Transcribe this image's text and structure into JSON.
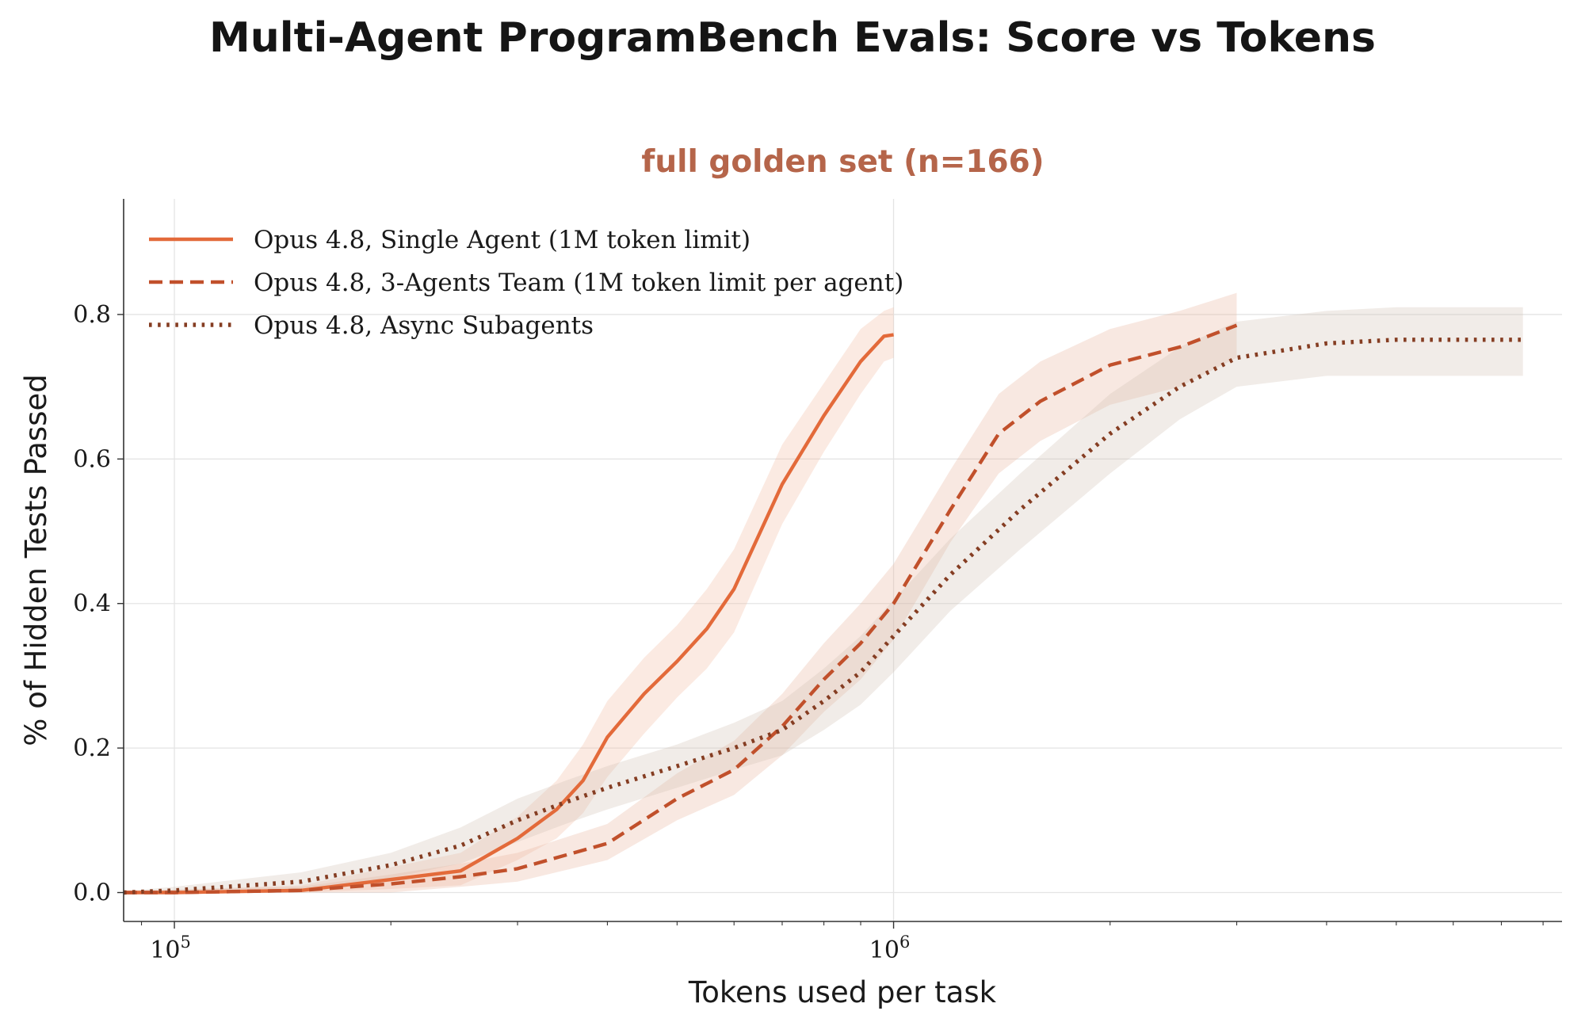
{
  "figure_title": "Multi-Agent ProgramBench Evals: Score vs Tokens",
  "chart_data": {
    "type": "line",
    "title": "full golden set (n=166)",
    "title_color": "#B5654A",
    "xlabel": "Tokens used per task",
    "ylabel": "% of Hidden Tests Passed",
    "xscale": "log",
    "xlim": [
      85000,
      8500000
    ],
    "ylim": [
      -0.04,
      0.96
    ],
    "grid": true,
    "legend_position": "upper-left",
    "yticks": [
      {
        "value": 0.0,
        "label": "0.0"
      },
      {
        "value": 0.2,
        "label": "0.2"
      },
      {
        "value": 0.4,
        "label": "0.4"
      },
      {
        "value": 0.6,
        "label": "0.6"
      },
      {
        "value": 0.8,
        "label": "0.8"
      }
    ],
    "xticks_major": [
      {
        "value": 100000,
        "base": "10",
        "exp": "5"
      },
      {
        "value": 1000000,
        "base": "10",
        "exp": "6"
      }
    ],
    "series": [
      {
        "name": "Opus 4.8, Single Agent (1M token limit)",
        "color": "#E36A3A",
        "band_color": "#F2B8A0",
        "style": "solid",
        "x": [
          85000,
          100000,
          150000,
          200000,
          250000,
          300000,
          340000,
          370000,
          400000,
          450000,
          500000,
          550000,
          600000,
          700000,
          800000,
          900000,
          970000,
          1000000
        ],
        "y": [
          0.0,
          0.0,
          0.003,
          0.018,
          0.03,
          0.075,
          0.115,
          0.155,
          0.215,
          0.275,
          0.32,
          0.365,
          0.42,
          0.565,
          0.66,
          0.735,
          0.77,
          0.772
        ],
        "lower": [
          0.0,
          0.0,
          0.0,
          0.005,
          0.01,
          0.045,
          0.075,
          0.11,
          0.16,
          0.22,
          0.27,
          0.31,
          0.36,
          0.51,
          0.61,
          0.69,
          0.735,
          0.74
        ],
        "upper": [
          0.002,
          0.004,
          0.01,
          0.035,
          0.055,
          0.105,
          0.155,
          0.205,
          0.265,
          0.325,
          0.37,
          0.42,
          0.475,
          0.62,
          0.705,
          0.78,
          0.805,
          0.81
        ]
      },
      {
        "name": "Opus 4.8, 3-Agents Team (1M token limit per agent)",
        "color": "#C1502B",
        "band_color": "#E8B39A",
        "style": "dashed",
        "x": [
          85000,
          100000,
          150000,
          200000,
          250000,
          300000,
          400000,
          500000,
          600000,
          700000,
          800000,
          900000,
          1000000,
          1200000,
          1400000,
          1600000,
          2000000,
          2500000,
          3000000
        ],
        "y": [
          0.0,
          0.0,
          0.003,
          0.012,
          0.022,
          0.033,
          0.068,
          0.13,
          0.17,
          0.23,
          0.295,
          0.345,
          0.4,
          0.53,
          0.635,
          0.68,
          0.73,
          0.755,
          0.785
        ],
        "lower": [
          0.0,
          0.0,
          0.0,
          0.0,
          0.008,
          0.015,
          0.045,
          0.1,
          0.135,
          0.19,
          0.25,
          0.295,
          0.35,
          0.485,
          0.58,
          0.625,
          0.675,
          0.7,
          0.74
        ],
        "upper": [
          0.002,
          0.004,
          0.008,
          0.025,
          0.04,
          0.055,
          0.095,
          0.165,
          0.21,
          0.275,
          0.345,
          0.4,
          0.455,
          0.585,
          0.69,
          0.735,
          0.78,
          0.805,
          0.83
        ]
      },
      {
        "name": "Opus 4.8, Async Subagents",
        "color": "#853D22",
        "band_color": "#D2BFB4",
        "style": "dotted",
        "x": [
          85000,
          100000,
          150000,
          200000,
          250000,
          300000,
          350000,
          400000,
          500000,
          600000,
          700000,
          800000,
          900000,
          1000000,
          1200000,
          1500000,
          2000000,
          2500000,
          3000000,
          4000000,
          5000000,
          7500000
        ],
        "y": [
          0.0,
          0.003,
          0.015,
          0.038,
          0.065,
          0.1,
          0.125,
          0.145,
          0.175,
          0.2,
          0.225,
          0.265,
          0.305,
          0.355,
          0.44,
          0.53,
          0.635,
          0.7,
          0.74,
          0.76,
          0.765,
          0.765
        ],
        "lower": [
          0.0,
          0.0,
          0.005,
          0.02,
          0.04,
          0.07,
          0.095,
          0.115,
          0.145,
          0.17,
          0.19,
          0.225,
          0.26,
          0.305,
          0.39,
          0.475,
          0.58,
          0.655,
          0.7,
          0.715,
          0.715,
          0.715
        ],
        "upper": [
          0.002,
          0.008,
          0.028,
          0.055,
          0.09,
          0.13,
          0.155,
          0.175,
          0.205,
          0.235,
          0.265,
          0.31,
          0.355,
          0.405,
          0.49,
          0.58,
          0.69,
          0.755,
          0.79,
          0.805,
          0.81,
          0.81
        ]
      }
    ]
  }
}
